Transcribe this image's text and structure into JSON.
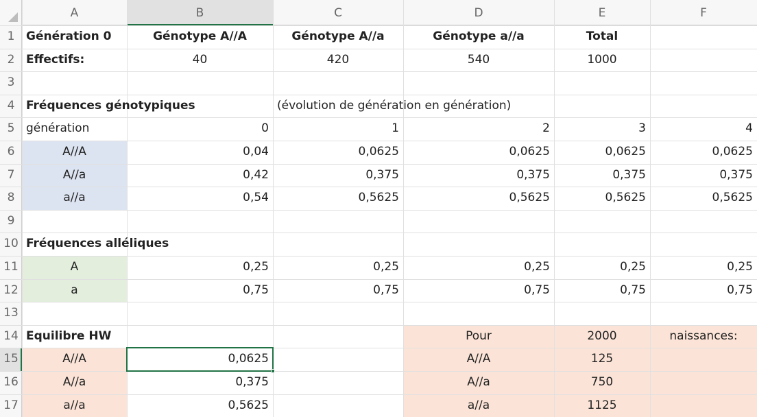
{
  "column_headers": [
    "A",
    "B",
    "C",
    "D",
    "E",
    "F"
  ],
  "row_headers": [
    1,
    2,
    3,
    4,
    5,
    6,
    7,
    8,
    9,
    10,
    11,
    12,
    13,
    14,
    15,
    16,
    17
  ],
  "rows": [
    {
      "A": "Génération 0",
      "B": "Génotype A//A",
      "C": "Génotype A//a",
      "D": "Génotype a//a",
      "E": "Total"
    },
    {
      "A": "Effectifs:",
      "B": "40",
      "C": "420",
      "D": "540",
      "E": "1000"
    },
    {},
    {
      "A": "Fréquences génotypiques",
      "C": "(évolution de génération en génération)"
    },
    {
      "A": "génération",
      "B": "0",
      "C": "1",
      "D": "2",
      "E": "3",
      "F": "4"
    },
    {
      "A": "A//A",
      "B": "0,04",
      "C": "0,0625",
      "D": "0,0625",
      "E": "0,0625",
      "F": "0,0625"
    },
    {
      "A": "A//a",
      "B": "0,42",
      "C": "0,375",
      "D": "0,375",
      "E": "0,375",
      "F": "0,375"
    },
    {
      "A": "a//a",
      "B": "0,54",
      "C": "0,5625",
      "D": "0,5625",
      "E": "0,5625",
      "F": "0,5625"
    },
    {},
    {
      "A": "Fréquences alléliques"
    },
    {
      "A": "A",
      "B": "0,25",
      "C": "0,25",
      "D": "0,25",
      "E": "0,25",
      "F": "0,25"
    },
    {
      "A": "a",
      "B": "0,75",
      "C": "0,75",
      "D": "0,75",
      "E": "0,75",
      "F": "0,75"
    },
    {},
    {
      "A": "Equilibre HW",
      "D": "Pour",
      "E": "2000",
      "F": "naissances:"
    },
    {
      "A": "A//A",
      "B": "0,0625",
      "D": "A//A",
      "E": "125"
    },
    {
      "A": "A//a",
      "B": "0,375",
      "D": "A//a",
      "E": "750"
    },
    {
      "A": "a//a",
      "B": "0,5625",
      "D": "a//a",
      "E": "1125"
    }
  ]
}
